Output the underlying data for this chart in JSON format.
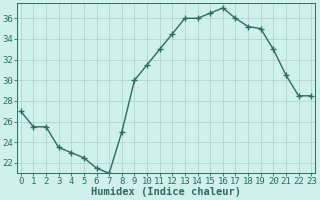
{
  "x": [
    0,
    1,
    2,
    3,
    4,
    5,
    6,
    7,
    8,
    9,
    10,
    11,
    12,
    13,
    14,
    15,
    16,
    17,
    18,
    19,
    20,
    21,
    22,
    23
  ],
  "y": [
    27,
    25.5,
    25.5,
    23.5,
    23,
    22.5,
    21.5,
    21,
    25,
    30,
    31.5,
    33,
    34.5,
    36,
    36,
    36.5,
    37,
    36,
    35.2,
    35,
    33,
    30.5,
    28.5,
    28.5
  ],
  "line_color": "#2e6b5e",
  "marker": "+",
  "marker_size": 4,
  "marker_lw": 1.0,
  "line_width": 1.0,
  "bg_color": "#cff0eb",
  "grid_color": "#acd8d2",
  "xlabel": "Humidex (Indice chaleur)",
  "xlabel_fontsize": 7.5,
  "xlabel_color": "#2e6b5e",
  "ylabel_ticks": [
    22,
    24,
    26,
    28,
    30,
    32,
    34,
    36
  ],
  "xticks": [
    0,
    1,
    2,
    3,
    4,
    5,
    6,
    7,
    8,
    9,
    10,
    11,
    12,
    13,
    14,
    15,
    16,
    17,
    18,
    19,
    20,
    21,
    22,
    23
  ],
  "ylim": [
    21.0,
    37.5
  ],
  "xlim": [
    -0.3,
    23.3
  ],
  "tick_fontsize": 6.5,
  "tick_color": "#2e6b5e",
  "spine_color": "#2e6b5e"
}
